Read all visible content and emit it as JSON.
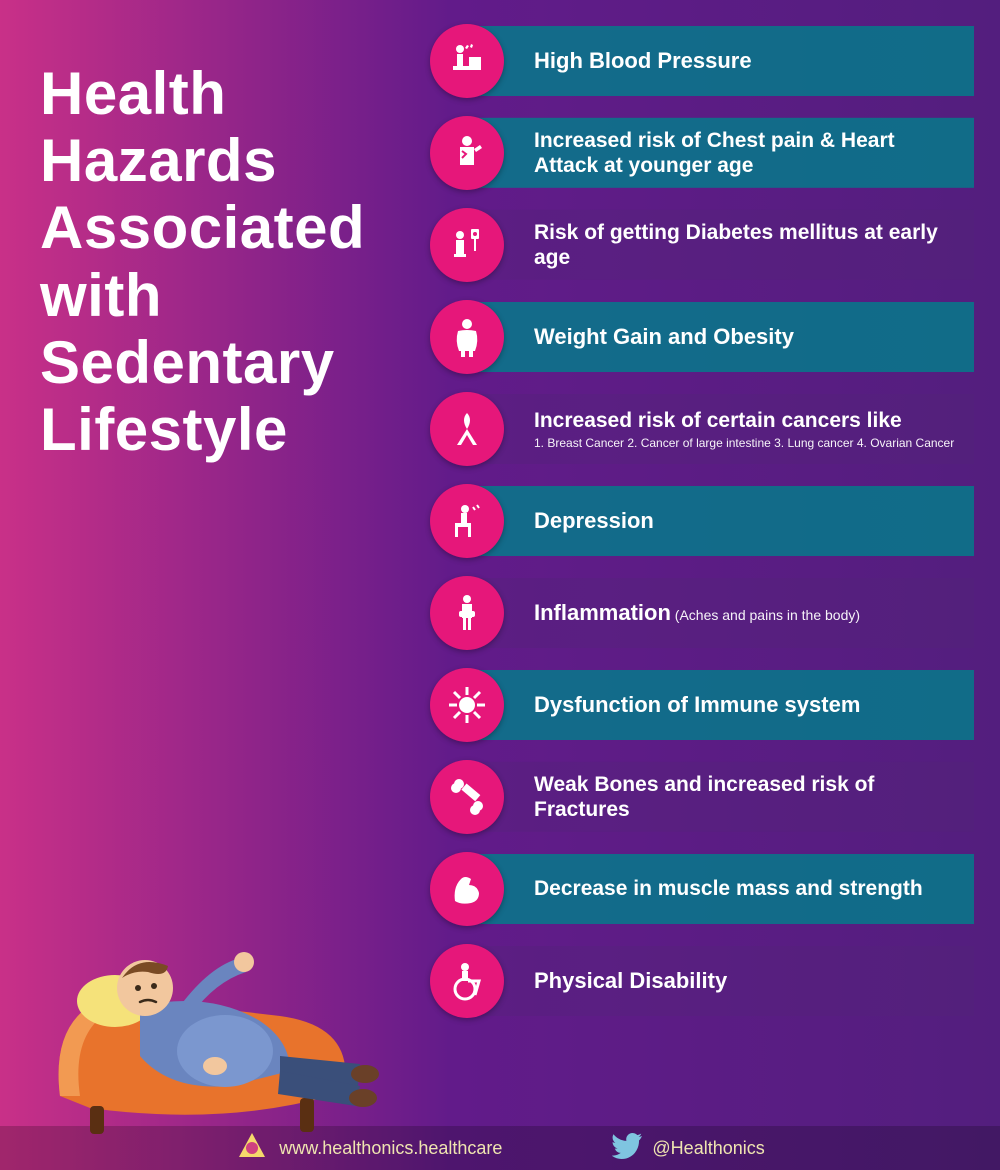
{
  "title": "Health Hazards Associated with Sedentary Lifestyle",
  "title_fontsize": 60,
  "colors": {
    "icon_bg": "#e6177a",
    "icon_fg": "#ffffff",
    "bar_bg": "rgba(0,128,139,0.8)",
    "bar_bg_plain": "rgba(82,36,120,0.35)",
    "text": "#ffffff",
    "footer_text": "#efe4b0"
  },
  "hazards": [
    {
      "text": "High Blood Pressure",
      "bar": true,
      "fontsize": 22
    },
    {
      "text": "Increased risk of Chest pain & Heart Attack at younger age",
      "bar": true,
      "fontsize": 21
    },
    {
      "text": "Risk of getting Diabetes mellitus at early age",
      "bar": false,
      "fontsize": 21
    },
    {
      "text": "Weight Gain and Obesity",
      "bar": true,
      "fontsize": 22
    },
    {
      "text": "Increased risk of certain cancers like",
      "sub": "1. Breast Cancer  2. Cancer of large intestine  3. Lung cancer  4. Ovarian Cancer",
      "bar": false,
      "fontsize": 21
    },
    {
      "text": "Depression",
      "bar": true,
      "fontsize": 22
    },
    {
      "text": "Inflammation",
      "paren": "(Aches and pains in the body)",
      "bar": false,
      "fontsize": 22
    },
    {
      "text": "Dysfunction of Immune system",
      "bar": true,
      "fontsize": 22
    },
    {
      "text": "Weak Bones and increased risk of Fractures",
      "bar": false,
      "fontsize": 21
    },
    {
      "text": "Decrease in muscle mass and strength",
      "bar": true,
      "fontsize": 21
    },
    {
      "text": "Physical Disability",
      "bar": false,
      "fontsize": 22
    }
  ],
  "footer": {
    "website": "www.healthonics.healthcare",
    "handle": "@Healthonics"
  }
}
